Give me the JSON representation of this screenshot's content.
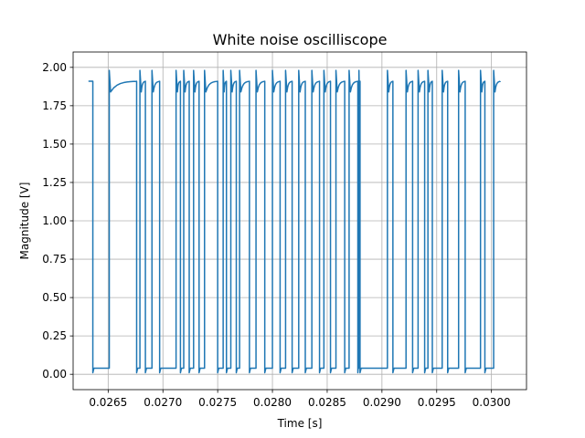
{
  "chart_data": {
    "type": "line",
    "title": "White noise oscilliscope",
    "xlabel": "Time [s]",
    "ylabel": "Magnitude [V]",
    "xlim": [
      0.02618,
      0.03032
    ],
    "ylim": [
      -0.1,
      2.1
    ],
    "x_ticks": [
      0.0265,
      0.027,
      0.0275,
      0.028,
      0.0285,
      0.029,
      0.0295,
      0.03
    ],
    "x_tick_labels": [
      "0.0265",
      "0.0270",
      "0.0275",
      "0.0280",
      "0.0285",
      "0.0290",
      "0.0295",
      "0.0300"
    ],
    "y_ticks": [
      0.0,
      0.25,
      0.5,
      0.75,
      1.0,
      1.25,
      1.5,
      1.75,
      2.0
    ],
    "y_tick_labels": [
      "0.00",
      "0.25",
      "0.50",
      "0.75",
      "1.00",
      "1.25",
      "1.50",
      "1.75",
      "2.00"
    ],
    "grid": true,
    "line_color": "#1f77b4",
    "high_level": 1.91,
    "low_level": 0.04,
    "x_start": 0.02632,
    "x_end": 0.03008,
    "initial_state": "high",
    "transitions": [
      0.02636,
      0.02651,
      0.02676,
      0.02679,
      0.02684,
      0.0269,
      0.02697,
      0.02712,
      0.02716,
      0.02719,
      0.02724,
      0.02728,
      0.02733,
      0.02738,
      0.0275,
      0.02755,
      0.02758,
      0.02762,
      0.02767,
      0.0277,
      0.02779,
      0.02785,
      0.02793,
      0.028,
      0.02807,
      0.02812,
      0.02818,
      0.02824,
      0.0283,
      0.02836,
      0.02843,
      0.02847,
      0.02853,
      0.02858,
      0.02866,
      0.0287,
      0.02878,
      0.02879,
      0.0288,
      0.02905,
      0.0291,
      0.02922,
      0.02928,
      0.02933,
      0.02939,
      0.02942,
      0.02946,
      0.02955,
      0.0296,
      0.0297,
      0.02976,
      0.0299,
      0.02994,
      0.03002
    ]
  }
}
